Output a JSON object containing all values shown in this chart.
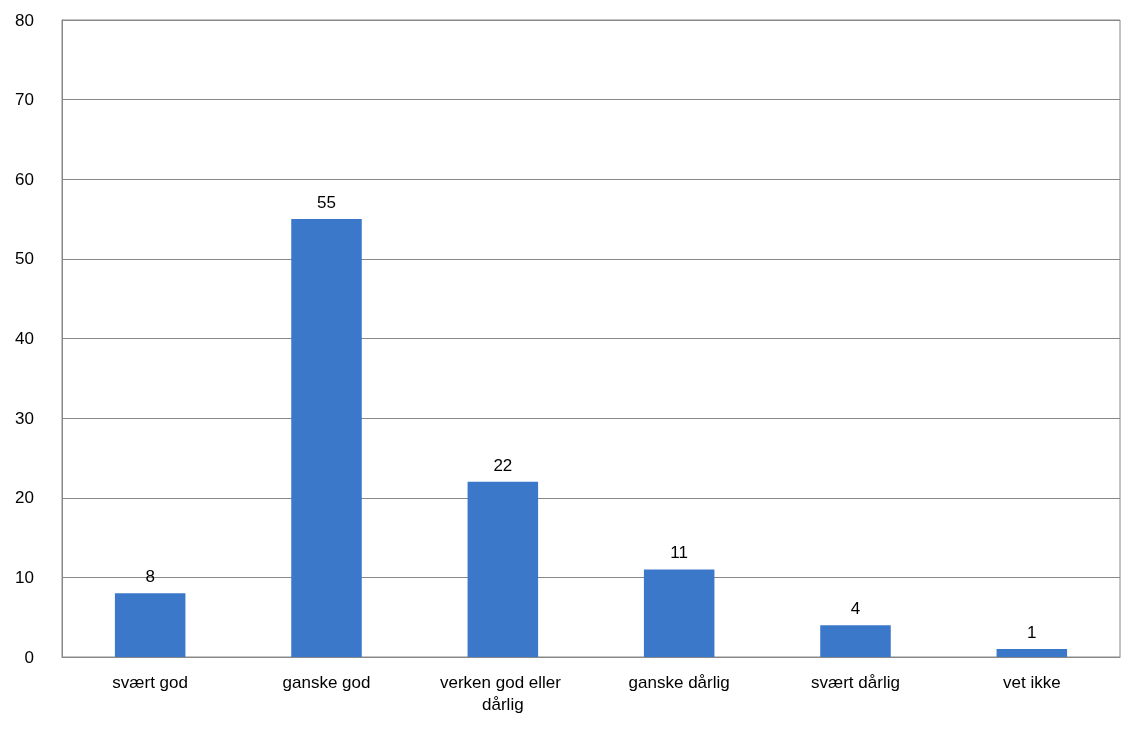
{
  "chart_data": {
    "type": "bar",
    "categories": [
      "svært god",
      "ganske god",
      "verken god eller dårlig",
      "ganske dårlig",
      "svært dårlig",
      "vet ikke"
    ],
    "values": [
      8,
      55,
      22,
      11,
      4,
      1
    ],
    "color": "#3b78c9",
    "ylim": [
      0,
      80
    ],
    "yticks": [
      0,
      10,
      20,
      30,
      40,
      50,
      60,
      70,
      80
    ],
    "grid": "y",
    "data_labels": true
  }
}
